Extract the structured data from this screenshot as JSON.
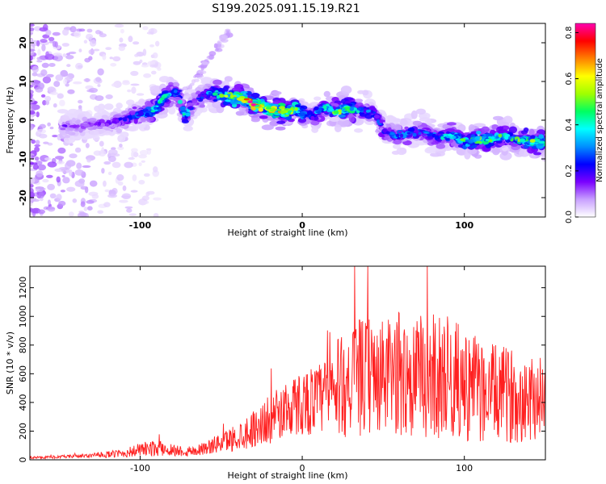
{
  "title": "S199.2025.091.15.19.R21",
  "chart_data": [
    {
      "type": "heatmap",
      "xlabel": "Height of straight line (km)",
      "ylabel": "Frequency (Hz)",
      "xlim": [
        -168,
        150
      ],
      "ylim": [
        -25,
        25
      ],
      "xticks": [
        -100,
        0,
        100
      ],
      "yticks": [
        -20,
        -10,
        0,
        10,
        20
      ],
      "colorbar": {
        "label": "Normalized spectral amplitude",
        "range": [
          0.0,
          0.84
        ],
        "ticks": [
          0.0,
          0.2,
          0.4,
          0.6,
          0.8
        ],
        "colors": [
          "#ffffff",
          "#c8a0ff",
          "#7a00ff",
          "#0000ff",
          "#0090ff",
          "#00ffff",
          "#00ff60",
          "#a0ff00",
          "#ffff00",
          "#ff8000",
          "#ff0000",
          "#ff00b0"
        ]
      },
      "ridge": {
        "x": [
          -140,
          -120,
          -100,
          -93,
          -85,
          -78,
          -72,
          -66,
          -58,
          -50,
          -44,
          -36,
          -30,
          -22,
          -15,
          -8,
          -4,
          0,
          6,
          14,
          20,
          28,
          36,
          44,
          50,
          58,
          66,
          75,
          84,
          92,
          100,
          108,
          116,
          124,
          132,
          140,
          148
        ],
        "y": [
          -1.5,
          -1,
          1.5,
          2,
          6,
          7.5,
          1,
          5,
          7,
          6.5,
          6,
          5.5,
          4,
          3,
          2.5,
          2,
          3,
          1.5,
          1,
          3.5,
          2,
          3,
          2.5,
          2,
          -2.5,
          -4,
          -3.5,
          -3,
          -4.5,
          -4,
          -5.5,
          -5,
          -5,
          -4,
          -5,
          -5.5,
          -5.5
        ],
        "peak_amplitude": [
          0.15,
          0.15,
          0.3,
          0.45,
          0.4,
          0.3,
          0.45,
          0.2,
          0.3,
          0.5,
          0.55,
          0.8,
          0.75,
          0.7,
          0.7,
          0.6,
          0.6,
          0.35,
          0.3,
          0.45,
          0.5,
          0.55,
          0.35,
          0.3,
          0.25,
          0.3,
          0.35,
          0.3,
          0.35,
          0.4,
          0.5,
          0.55,
          0.45,
          0.45,
          0.5,
          0.5,
          0.5
        ]
      }
    },
    {
      "type": "line",
      "xlabel": "Height of straight line (km)",
      "ylabel": "SNR (10 * v/v)",
      "xlim": [
        -168,
        150
      ],
      "ylim": [
        0,
        1350
      ],
      "xticks": [
        -100,
        0,
        100
      ],
      "yticks": [
        0,
        200,
        400,
        600,
        800,
        1000,
        1200
      ],
      "series": [
        {
          "color": "#ff2020",
          "x": [
            -168,
            -150,
            -130,
            -110,
            -100,
            -90,
            -80,
            -70,
            -60,
            -50,
            -40,
            -30,
            -20,
            -10,
            0,
            10,
            20,
            30,
            40,
            50,
            60,
            70,
            80,
            90,
            100,
            110,
            120,
            130,
            140,
            150
          ],
          "y": [
            15,
            20,
            30,
            45,
            70,
            80,
            70,
            55,
            80,
            120,
            160,
            220,
            280,
            350,
            400,
            420,
            480,
            560,
            580,
            570,
            600,
            560,
            590,
            580,
            520,
            480,
            460,
            450,
            440,
            430
          ],
          "spread": [
            8,
            10,
            15,
            30,
            50,
            55,
            45,
            35,
            45,
            70,
            100,
            130,
            170,
            200,
            230,
            250,
            340,
            400,
            420,
            400,
            450,
            430,
            450,
            430,
            400,
            360,
            340,
            330,
            320,
            300
          ]
        }
      ]
    }
  ]
}
